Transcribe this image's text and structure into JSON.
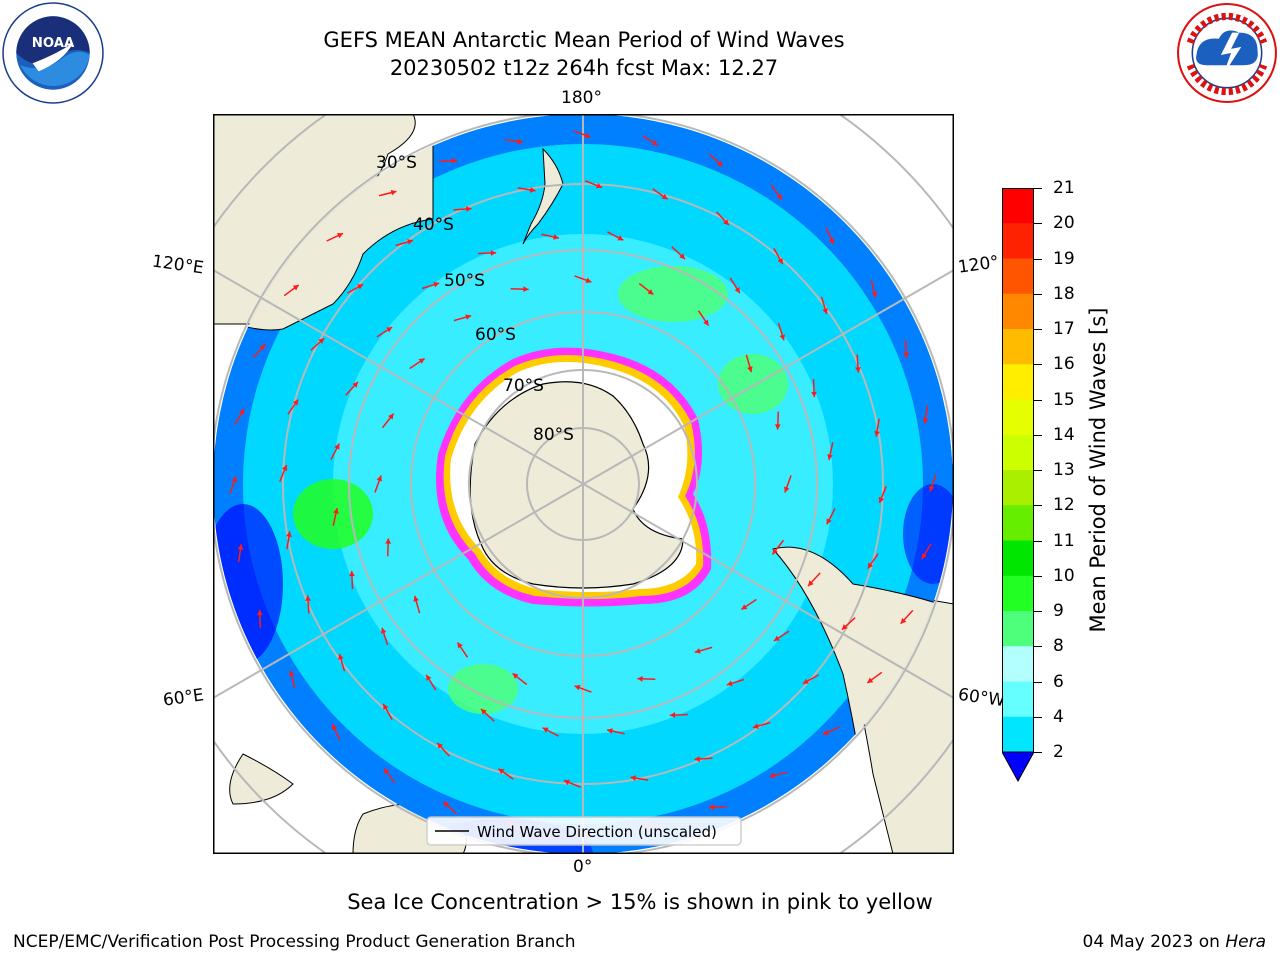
{
  "title": {
    "line1": "GEFS MEAN Antarctic Mean Period of Wind Waves",
    "line2": "20230502 t12z 264h fcst   Max: 12.27"
  },
  "map": {
    "lon_labels": {
      "top": "180°",
      "bottom": "0°",
      "left_upper": "120°E",
      "left_lower": "60°E",
      "right_upper": "120°",
      "right_lower": "60°W"
    },
    "lat_labels": [
      "30°S",
      "40°S",
      "50°S",
      "60°S",
      "70°S",
      "80°S"
    ],
    "legend": "Wind Wave Direction (unscaled)",
    "colors": {
      "land": "#eeebd9",
      "ice": "#ffffff",
      "graticule": "#b8b8b8",
      "arrow": "#ff1a1a",
      "ice_edge": [
        "#ff33ff",
        "#ffcc00"
      ]
    }
  },
  "colorbar": {
    "label": "Mean Period of Wind Waves [s]",
    "ticks": [
      "2",
      "4",
      "6",
      "8",
      "9",
      "10",
      "11",
      "12",
      "13",
      "14",
      "15",
      "16",
      "17",
      "18",
      "19",
      "20",
      "21"
    ],
    "colors": [
      "#0000ff",
      "#0080ff",
      "#00e6ff",
      "#66ffff",
      "#b3ffff",
      "#4dff7a",
      "#22ff22",
      "#00e600",
      "#66ee00",
      "#aaee00",
      "#ccff00",
      "#e6ff00",
      "#ffee00",
      "#ffbb00",
      "#ff8800",
      "#ff5500",
      "#ff2200",
      "#ff0000"
    ]
  },
  "footer": {
    "note": "Sea Ice Concentration > 15% is shown in pink to yellow",
    "left": "NCEP/EMC/Verification Post Processing Product Generation Branch",
    "date": "04 May 2023 on",
    "host": "Hera"
  }
}
